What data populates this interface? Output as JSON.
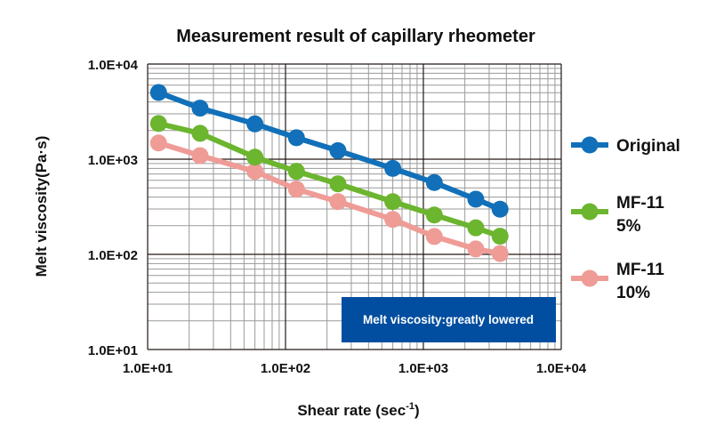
{
  "chart_data": {
    "type": "line",
    "title": "Measurement result of capillary rheometer",
    "xlabel": "Shear rate (sec",
    "xlabel_superscript": "-1",
    "xlabel_suffix": ")",
    "ylabel": "Melt viscosity(Pa·s)",
    "xscale": "log",
    "yscale": "log",
    "xlim": [
      10,
      10000
    ],
    "ylim": [
      10,
      10000
    ],
    "x_tick_labels": [
      "1.0E+01",
      "1.0E+02",
      "1.0E+03",
      "1.0E+04"
    ],
    "y_tick_labels": [
      "1.0E+04",
      "1.0E+03",
      "1.0E+02",
      "1.0E+01"
    ],
    "grid": true,
    "legend_placement": "right",
    "x": [
      12,
      24,
      60,
      120,
      240,
      600,
      1200,
      2400,
      3600
    ],
    "series": [
      {
        "name": "Original",
        "legend_lines": [
          "Original"
        ],
        "color": "#1170b9",
        "values": [
          5020,
          3440,
          2350,
          1680,
          1230,
          800,
          568,
          380,
          298
        ]
      },
      {
        "name": "MF-11 5%",
        "legend_lines": [
          "MF-11",
          "5%"
        ],
        "color": "#6cb52f",
        "values": [
          2370,
          1870,
          1050,
          745,
          551,
          358,
          259,
          190,
          155
        ]
      },
      {
        "name": "MF-11 10%",
        "legend_lines": [
          "MF-11",
          "10%"
        ],
        "color": "#ef9c97",
        "values": [
          1480,
          1090,
          745,
          484,
          358,
          233,
          154,
          114,
          102
        ]
      }
    ],
    "annotation": {
      "text": "Melt viscosity:greatly lowered",
      "background": "#014ea0",
      "color": "#ffffff"
    }
  }
}
